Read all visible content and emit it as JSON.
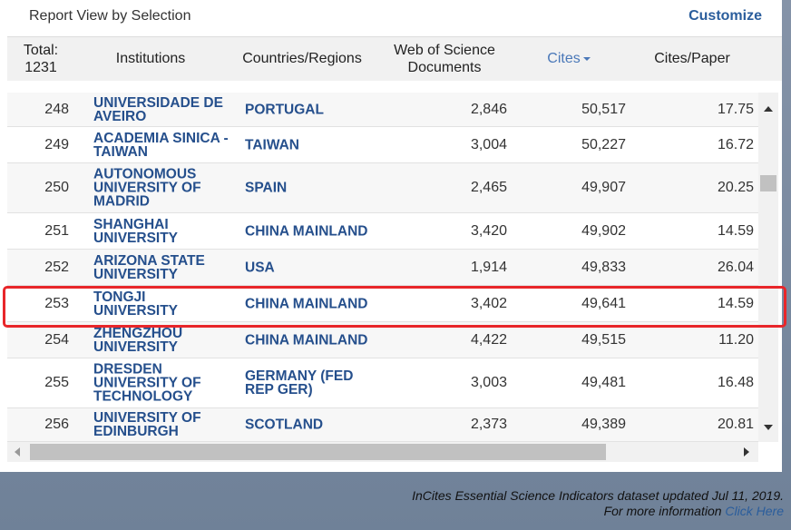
{
  "header": {
    "title": "Report View by Selection",
    "customize": "Customize"
  },
  "table": {
    "total_label": "Total:",
    "total_value": "1231",
    "columns": [
      "Institutions",
      "Countries/Regions",
      "Web of Science Documents",
      "Cites",
      "Cites/Paper"
    ],
    "rows": [
      [
        "248",
        "UNIVERSIDADE DE AVEIRO",
        "PORTUGAL",
        "2,846",
        "50,517",
        "17.75"
      ],
      [
        "249",
        "ACADEMIA SINICA - TAIWAN",
        "TAIWAN",
        "3,004",
        "50,227",
        "16.72"
      ],
      [
        "250",
        "AUTONOMOUS UNIVERSITY OF MADRID",
        "SPAIN",
        "2,465",
        "49,907",
        "20.25"
      ],
      [
        "251",
        "SHANGHAI UNIVERSITY",
        "CHINA MAINLAND",
        "3,420",
        "49,902",
        "14.59"
      ],
      [
        "252",
        "ARIZONA STATE UNIVERSITY",
        "USA",
        "1,914",
        "49,833",
        "26.04"
      ],
      [
        "253",
        "TONGJI UNIVERSITY",
        "CHINA MAINLAND",
        "3,402",
        "49,641",
        "14.59"
      ],
      [
        "254",
        "ZHENGZHOU UNIVERSITY",
        "CHINA MAINLAND",
        "4,422",
        "49,515",
        "11.20"
      ],
      [
        "255",
        "DRESDEN UNIVERSITY OF TECHNOLOGY",
        "GERMANY (FED REP GER)",
        "3,003",
        "49,481",
        "16.48"
      ],
      [
        "256",
        "UNIVERSITY OF EDINBURGH",
        "SCOTLAND",
        "2,373",
        "49,389",
        "20.81"
      ]
    ]
  },
  "footer": {
    "note": "InCites Essential Science Indicators dataset updated Jul 11, 2019.",
    "more": "For more information",
    "link": "Click Here"
  }
}
